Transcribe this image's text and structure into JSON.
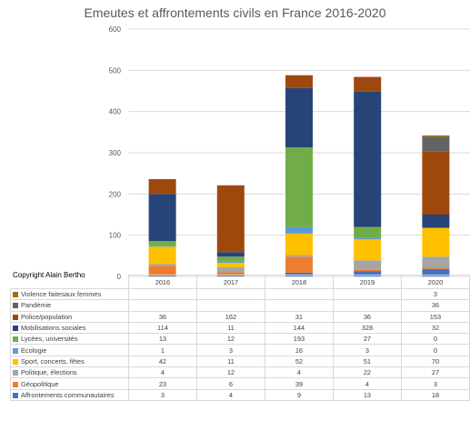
{
  "copyright": "Copyright Alain Bertho",
  "chart_data": {
    "type": "bar",
    "stacked": true,
    "title": "Emeutes et affrontements civils en France 2016-2020",
    "categories": [
      "2016",
      "2017",
      "2018",
      "2019",
      "2020"
    ],
    "ylim": [
      0,
      600
    ],
    "yticks": [
      "0",
      "100",
      "200",
      "300",
      "400",
      "500",
      "600"
    ],
    "grid": true,
    "legend": "data table below chart",
    "series": [
      {
        "name": "Affrontements communautaires",
        "color": "#4472c4",
        "values": [
          3,
          4,
          9,
          13,
          18
        ],
        "labels": [
          "3",
          "4",
          "9",
          "13",
          "18"
        ]
      },
      {
        "name": "Géopolitique",
        "color": "#ed7d31",
        "values": [
          23,
          6,
          39,
          4,
          3
        ],
        "labels": [
          "23",
          "6",
          "39",
          "4",
          "3"
        ]
      },
      {
        "name": "Politique, élections",
        "color": "#a5a5a5",
        "values": [
          4,
          12,
          4,
          22,
          27
        ],
        "labels": [
          "4",
          "12",
          "4",
          "22",
          "27"
        ]
      },
      {
        "name": "Sport, concerts, fêtes",
        "color": "#ffc000",
        "values": [
          42,
          11,
          52,
          51,
          70
        ],
        "labels": [
          "42",
          "11",
          "52",
          "51",
          "70"
        ]
      },
      {
        "name": "Ecologie",
        "color": "#5b9bd5",
        "values": [
          1,
          3,
          16,
          3,
          0
        ],
        "labels": [
          "1",
          "3",
          "16",
          "3",
          "0"
        ]
      },
      {
        "name": "Lycées, universités",
        "color": "#70ad47",
        "values": [
          13,
          12,
          193,
          27,
          0
        ],
        "labels": [
          "13",
          "12",
          "193",
          "27",
          "0"
        ]
      },
      {
        "name": "Mobilisations sociales",
        "color": "#264478",
        "values": [
          114,
          11,
          144,
          328,
          32
        ],
        "labels": [
          "114",
          "11",
          "144",
          "328",
          "32"
        ]
      },
      {
        "name": "Police/population",
        "color": "#9e480e",
        "values": [
          36,
          162,
          31,
          36,
          153
        ],
        "labels": [
          "36",
          "162",
          "31",
          "36",
          "153"
        ]
      },
      {
        "name": "Pandémie",
        "color": "#636363",
        "values": [
          0,
          0,
          0,
          0,
          36
        ],
        "labels": [
          "",
          "",
          "",
          "",
          "36"
        ]
      },
      {
        "name": "Violence faitesaux femmes",
        "color": "#997300",
        "values": [
          0,
          0,
          0,
          0,
          3
        ],
        "labels": [
          "",
          "",
          "",
          "",
          "3"
        ]
      }
    ]
  }
}
